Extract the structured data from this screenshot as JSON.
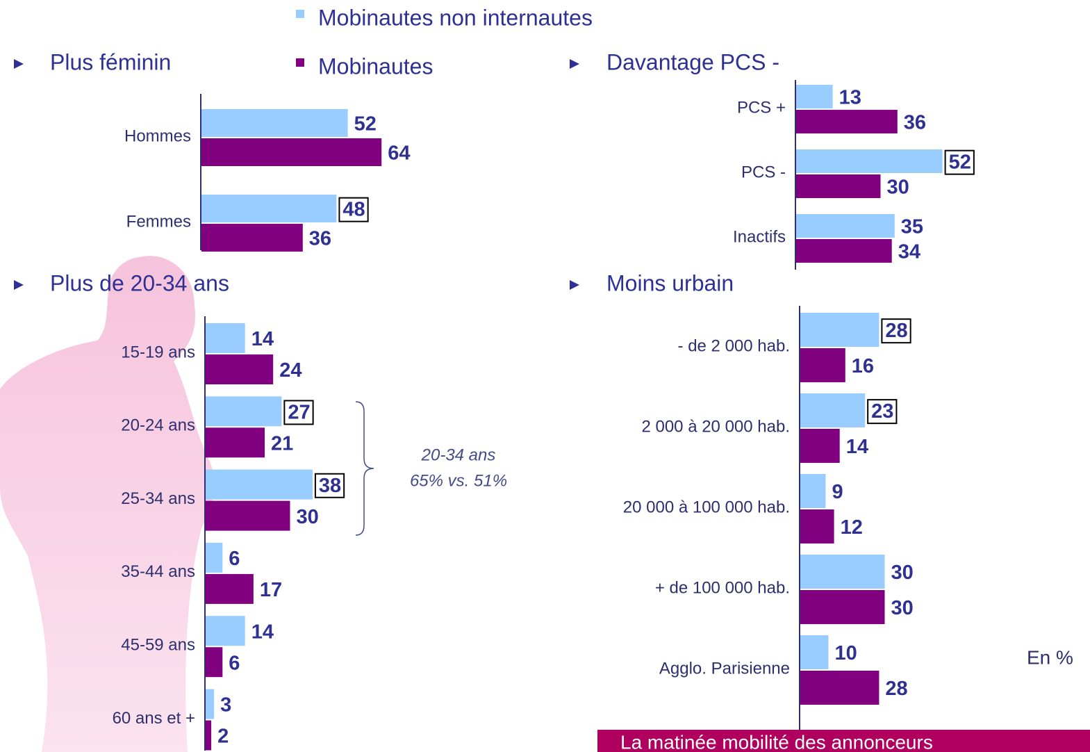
{
  "legend": [
    {
      "name": "Mobinautes non internautes",
      "color": "#99ccff"
    },
    {
      "name": "Mobinautes",
      "color": "#800080"
    }
  ],
  "chart_data": [
    {
      "type": "bar",
      "title": "Plus féminin",
      "categories": [
        "Hommes",
        "Femmes"
      ],
      "series": [
        {
          "values": [
            52,
            48
          ]
        },
        {
          "values": [
            64,
            36
          ]
        }
      ],
      "boxed": [
        [
          1
        ],
        []
      ]
    },
    {
      "type": "bar",
      "title": "Plus de 20-34 ans",
      "categories": [
        "15-19 ans",
        "20-24 ans",
        "25-34 ans",
        "35-44 ans",
        "45-59 ans",
        "60 ans et +"
      ],
      "series": [
        {
          "values": [
            14,
            27,
            38,
            6,
            14,
            3
          ]
        },
        {
          "values": [
            24,
            21,
            30,
            17,
            6,
            2
          ]
        }
      ],
      "boxed": [
        [
          1,
          2
        ],
        []
      ],
      "annotation": [
        "20-34 ans",
        "65% vs. 51%"
      ]
    },
    {
      "type": "bar",
      "title": "Davantage PCS -",
      "categories": [
        "PCS +",
        "PCS -",
        "Inactifs"
      ],
      "series": [
        {
          "values": [
            13,
            52,
            35
          ]
        },
        {
          "values": [
            36,
            30,
            34
          ]
        }
      ],
      "boxed": [
        [
          1
        ],
        []
      ]
    },
    {
      "type": "bar",
      "title": "Moins urbain",
      "categories": [
        "- de 2 000 hab.",
        "2 000 à 20 000 hab.",
        "20 000 à 100 000 hab.",
        "+ de 100 000 hab.",
        "Agglo. Parisienne"
      ],
      "series": [
        {
          "values": [
            28,
            23,
            9,
            30,
            10
          ]
        },
        {
          "values": [
            16,
            14,
            12,
            30,
            28
          ]
        }
      ],
      "boxed": [
        [
          0,
          1
        ],
        []
      ]
    }
  ],
  "unit_note": "En %",
  "footer": "La matinée mobilité des annonceurs"
}
